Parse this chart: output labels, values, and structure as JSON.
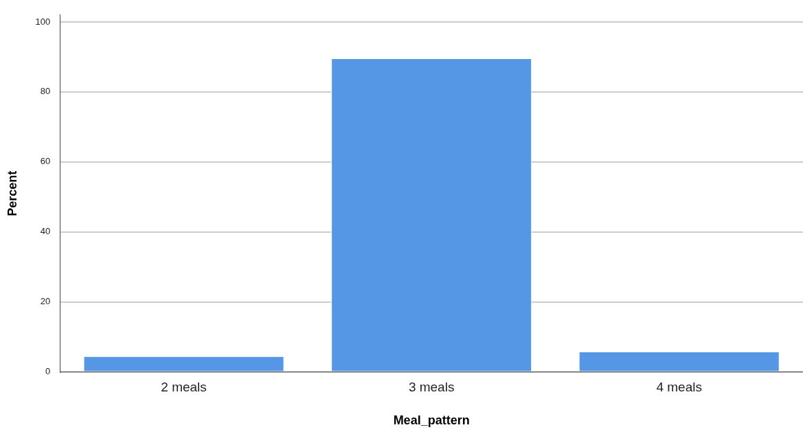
{
  "chart_data": {
    "type": "bar",
    "xlabel": "Meal_pattern",
    "ylabel": "Percent",
    "categories": [
      "2 meals",
      "3 meals",
      "4 meals"
    ],
    "values": [
      4.5,
      89.6,
      5.8
    ],
    "color": "#5596e5",
    "ylim": [
      0,
      102
    ],
    "yticks": [
      0,
      20,
      40,
      60,
      80,
      100
    ],
    "grid": "y",
    "legend": false
  }
}
